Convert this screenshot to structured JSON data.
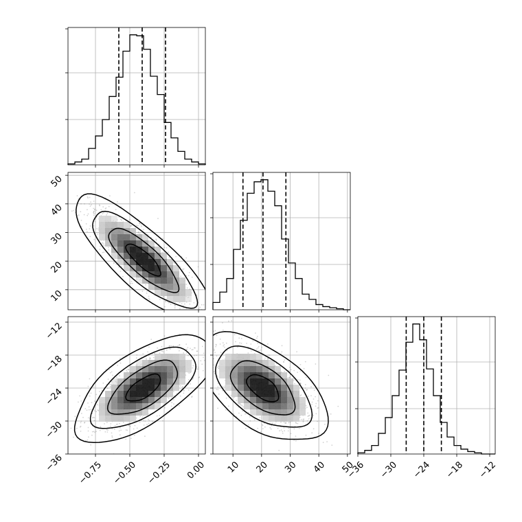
{
  "chart_data": {
    "type": "corner",
    "parameters": [
      {
        "index": 0,
        "range": [
          -0.95,
          0.05
        ],
        "ticks": [
          -0.75,
          -0.5,
          -0.25,
          0.0
        ],
        "tick_labels": [
          "−0.75",
          "−0.50",
          "−0.25",
          "0.00"
        ],
        "quantiles": [
          -0.58,
          -0.41,
          -0.24
        ],
        "hist": {
          "edges_start": -0.95,
          "bin_width": 0.05,
          "counts": [
            1,
            3,
            6,
            17,
            30,
            47,
            71,
            91,
            118,
            135,
            134,
            120,
            92,
            73,
            44,
            28,
            14,
            6,
            3,
            1
          ]
        }
      },
      {
        "index": 1,
        "range": [
          3,
          51
        ],
        "ticks": [
          10,
          20,
          30,
          40,
          50
        ],
        "tick_labels": [
          "10",
          "20",
          "30",
          "40",
          "50"
        ],
        "quantiles": [
          13.5,
          20.5,
          28.5
        ],
        "hist": {
          "edges_start": 3,
          "bin_width": 2.4,
          "counts": [
            7,
            17,
            30,
            58,
            86,
            112,
            123,
            125,
            114,
            100,
            68,
            45,
            30,
            15,
            10,
            5,
            3,
            2,
            1,
            0
          ]
        }
      },
      {
        "index": 2,
        "range": [
          -36,
          -11
        ],
        "ticks": [
          -36,
          -30,
          -24,
          -18,
          -12
        ],
        "tick_labels": [
          "−36",
          "−30",
          "−24",
          "−18",
          "−12"
        ],
        "quantiles": [
          -27.2,
          -24.0,
          -20.8
        ],
        "hist": {
          "edges_start": -36,
          "bin_width": 1.25,
          "counts": [
            1,
            3,
            7,
            17,
            30,
            48,
            69,
            92,
            107,
            94,
            70,
            48,
            26,
            14,
            7,
            4,
            2,
            1,
            0,
            0
          ]
        }
      }
    ],
    "y_axes": [
      {
        "row": 1,
        "param": 1,
        "ticks": [
          10,
          20,
          30,
          40,
          50
        ],
        "tick_labels": [
          "10",
          "20",
          "30",
          "40",
          "50"
        ]
      },
      {
        "row": 2,
        "param": 2,
        "ticks": [
          -36,
          -30,
          -24,
          -18,
          -12
        ],
        "tick_labels": [
          "−36",
          "−30",
          "−24",
          "−18",
          "−12"
        ]
      }
    ],
    "joint": [
      {
        "x_param": 0,
        "y_param": 1,
        "mean": [
          -0.4,
          20.5
        ],
        "sd": [
          0.17,
          7.5
        ],
        "rho": -0.82
      },
      {
        "x_param": 0,
        "y_param": 2,
        "mean": [
          -0.4,
          -24.0
        ],
        "sd": [
          0.17,
          3.3
        ],
        "rho": 0.65
      },
      {
        "x_param": 1,
        "y_param": 2,
        "mean": [
          20.5,
          -24.0
        ],
        "sd": [
          7.5,
          3.3
        ],
        "rho": -0.55
      }
    ],
    "contour_levels_sigma": [
      0.5,
      1.0,
      1.5,
      2.0
    ],
    "grid": true,
    "colors": {
      "line": "#000000",
      "grid": "#b0b0b0",
      "points": "#808080"
    }
  }
}
